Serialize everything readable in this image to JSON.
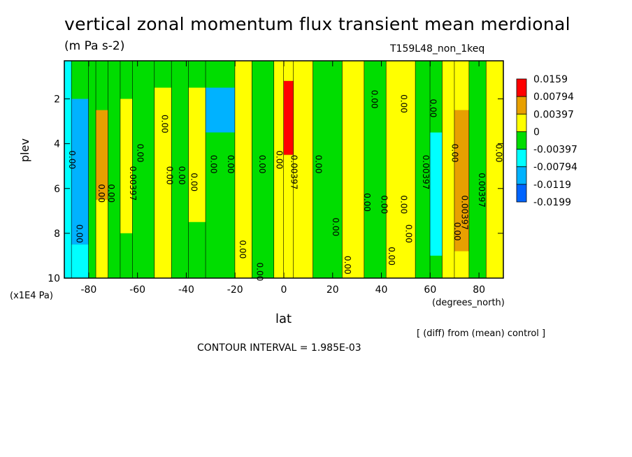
{
  "chart_data": {
    "type": "heatmap",
    "title": "vertical zonal momentum flux transient mean merdional",
    "units": "(m Pa s-2)",
    "run_id": "T159L48_non_1keq",
    "xlabel": "lat",
    "x_units": "(degrees_north)",
    "ylabel": "plev",
    "y_units": "(x1E4 Pa)",
    "note": "[ (diff) from (mean) control ]",
    "contour_interval": "CONTOUR INTERVAL = 1.985E-03",
    "xlim": [
      -90,
      90
    ],
    "ylim": [
      10,
      0.3
    ],
    "x_ticks": [
      "-80",
      "-60",
      "-40",
      "-20",
      "0",
      "20",
      "40",
      "60",
      "80"
    ],
    "y_ticks": [
      "2",
      "4",
      "6",
      "8",
      "10"
    ],
    "legend_levels": [
      "0.0159",
      "0.00794",
      "0.00397",
      "0",
      "-0.00397",
      "-0.00794",
      "-0.0119",
      "-0.0199"
    ],
    "legend_colors": [
      "#ff0000",
      "#e8a000",
      "#ffff00",
      "#00dd00",
      "#00ffff",
      "#00b2ff",
      "#0064ff"
    ],
    "contour_labels": [
      {
        "text": "0.00",
        "lat": -50,
        "plev": 2.7
      },
      {
        "text": "0.00",
        "lat": -88,
        "plev": 4.3
      },
      {
        "text": "0.00",
        "lat": -60,
        "plev": 4.0
      },
      {
        "text": "0.00397",
        "lat": -63,
        "plev": 5.0
      },
      {
        "text": "0.00",
        "lat": -48,
        "plev": 5.0
      },
      {
        "text": "0.00",
        "lat": -43,
        "plev": 5.0
      },
      {
        "text": "0.00",
        "lat": -38,
        "plev": 5.3
      },
      {
        "text": "0.00",
        "lat": -30,
        "plev": 4.5
      },
      {
        "text": "0.00",
        "lat": -23,
        "plev": 4.5
      },
      {
        "text": "0.00",
        "lat": -10,
        "plev": 4.5
      },
      {
        "text": "0.00",
        "lat": -3,
        "plev": 4.3
      },
      {
        "text": "0.00397",
        "lat": 3,
        "plev": 4.5
      },
      {
        "text": "0.00",
        "lat": 13,
        "plev": 4.5
      },
      {
        "text": "0.00",
        "lat": 36,
        "plev": 1.6
      },
      {
        "text": "0.00",
        "lat": 48,
        "plev": 1.8
      },
      {
        "text": "0.00",
        "lat": 60,
        "plev": 2.0
      },
      {
        "text": "0.00397",
        "lat": 57,
        "plev": 4.5
      },
      {
        "text": "0.00",
        "lat": 69,
        "plev": 4.0
      },
      {
        "text": "0.00",
        "lat": 87,
        "plev": 4.0
      },
      {
        "text": "0.00397",
        "lat": 80,
        "plev": 5.3
      },
      {
        "text": "0.00397",
        "lat": 73,
        "plev": 6.3
      },
      {
        "text": "0.00",
        "lat": -76,
        "plev": 5.8
      },
      {
        "text": "0.00",
        "lat": -72,
        "plev": 5.8
      },
      {
        "text": "0.00",
        "lat": -85,
        "plev": 7.6
      },
      {
        "text": "0.00",
        "lat": -18,
        "plev": 8.3
      },
      {
        "text": "0.00",
        "lat": -11,
        "plev": 9.3
      },
      {
        "text": "0.00",
        "lat": 20,
        "plev": 7.3
      },
      {
        "text": "0.00",
        "lat": 33,
        "plev": 6.2
      },
      {
        "text": "0.00",
        "lat": 40,
        "plev": 6.3
      },
      {
        "text": "0.00",
        "lat": 48,
        "plev": 6.3
      },
      {
        "text": "0.00",
        "lat": 50,
        "plev": 7.6
      },
      {
        "text": "0.00",
        "lat": 43,
        "plev": 8.6
      },
      {
        "text": "0.00",
        "lat": 70,
        "plev": 7.5
      },
      {
        "text": "0.00",
        "lat": 25,
        "plev": 9.0
      }
    ],
    "bands": [
      {
        "lat": [
          -90,
          -87
        ],
        "dominant": "0",
        "cells": [
          {
            "plev": [
              0.3,
              4.0
            ],
            "color_index": 4
          },
          {
            "plev": [
              4.0,
              10
            ],
            "color_index": 4
          }
        ]
      },
      {
        "lat": [
          -87,
          -80
        ],
        "dominant": "-0.00794",
        "cells": [
          {
            "plev": [
              0.3,
              2.0
            ],
            "color_index": 3
          },
          {
            "plev": [
              2.0,
              8.5
            ],
            "color_index": 5
          },
          {
            "plev": [
              8.5,
              10
            ],
            "color_index": 4
          }
        ]
      },
      {
        "lat": [
          -80,
          -77
        ],
        "dominant": "0",
        "cells": [
          {
            "plev": [
              0.3,
              10
            ],
            "color_index": 3
          }
        ]
      },
      {
        "lat": [
          -77,
          -72
        ],
        "dominant": "0.00397",
        "cells": [
          {
            "plev": [
              0.3,
              2.5
            ],
            "color_index": 3
          },
          {
            "plev": [
              2.5,
              6.5
            ],
            "color_index": 1
          },
          {
            "plev": [
              6.5,
              10
            ],
            "color_index": 2
          }
        ]
      },
      {
        "lat": [
          -72,
          -67
        ],
        "dominant": "0",
        "cells": [
          {
            "plev": [
              0.3,
              10
            ],
            "color_index": 3
          }
        ]
      },
      {
        "lat": [
          -67,
          -62
        ],
        "dominant": "0.00397",
        "cells": [
          {
            "plev": [
              0.3,
              2.0
            ],
            "color_index": 3
          },
          {
            "plev": [
              2.0,
              8.0
            ],
            "color_index": 2
          },
          {
            "plev": [
              8.0,
              10
            ],
            "color_index": 3
          }
        ]
      },
      {
        "lat": [
          -62,
          -53
        ],
        "dominant": "0",
        "cells": [
          {
            "plev": [
              0.3,
              10
            ],
            "color_index": 3
          }
        ]
      },
      {
        "lat": [
          -53,
          -46
        ],
        "dominant": "0",
        "cells": [
          {
            "plev": [
              0.3,
              1.5
            ],
            "color_index": 3
          },
          {
            "plev": [
              1.5,
              10
            ],
            "color_index": 2
          }
        ]
      },
      {
        "lat": [
          -46,
          -39
        ],
        "dominant": "0",
        "cells": [
          {
            "plev": [
              0.3,
              10
            ],
            "color_index": 3
          }
        ]
      },
      {
        "lat": [
          -39,
          -32
        ],
        "dominant": "0",
        "cells": [
          {
            "plev": [
              0.3,
              1.5
            ],
            "color_index": 3
          },
          {
            "plev": [
              1.5,
              7.5
            ],
            "color_index": 2
          },
          {
            "plev": [
              7.5,
              10
            ],
            "color_index": 3
          }
        ]
      },
      {
        "lat": [
          -32,
          -20
        ],
        "dominant": "-0.00794",
        "cells": [
          {
            "plev": [
              0.3,
              1.5
            ],
            "color_index": 3
          },
          {
            "plev": [
              1.5,
              3.5
            ],
            "color_index": 5
          },
          {
            "plev": [
              3.5,
              10
            ],
            "color_index": 3
          }
        ]
      },
      {
        "lat": [
          -20,
          -13
        ],
        "dominant": "0",
        "cells": [
          {
            "plev": [
              0.3,
              10
            ],
            "color_index": 2
          }
        ]
      },
      {
        "lat": [
          -13,
          -4
        ],
        "dominant": "0",
        "cells": [
          {
            "plev": [
              0.3,
              2.0
            ],
            "color_index": 3
          },
          {
            "plev": [
              2.0,
              10
            ],
            "color_index": 3
          }
        ]
      },
      {
        "lat": [
          -4,
          0
        ],
        "dominant": "0",
        "cells": [
          {
            "plev": [
              0.3,
              10
            ],
            "color_index": 2
          }
        ]
      },
      {
        "lat": [
          0,
          4
        ],
        "dominant": "0.0159",
        "cells": [
          {
            "plev": [
              0.3,
              1.2
            ],
            "color_index": 2
          },
          {
            "plev": [
              1.2,
              4.5
            ],
            "color_index": 0
          },
          {
            "plev": [
              4.5,
              10
            ],
            "color_index": 2
          }
        ]
      },
      {
        "lat": [
          4,
          12
        ],
        "dominant": "0",
        "cells": [
          {
            "plev": [
              0.3,
              10
            ],
            "color_index": 2
          }
        ]
      },
      {
        "lat": [
          12,
          24
        ],
        "dominant": "0",
        "cells": [
          {
            "plev": [
              0.3,
              10
            ],
            "color_index": 3
          }
        ]
      },
      {
        "lat": [
          24,
          33
        ],
        "dominant": "0",
        "cells": [
          {
            "plev": [
              0.3,
              10
            ],
            "color_index": 2
          }
        ]
      },
      {
        "lat": [
          33,
          42
        ],
        "dominant": "0",
        "cells": [
          {
            "plev": [
              0.3,
              10
            ],
            "color_index": 3
          }
        ]
      },
      {
        "lat": [
          42,
          54
        ],
        "dominant": "0",
        "cells": [
          {
            "plev": [
              0.3,
              10
            ],
            "color_index": 2
          }
        ]
      },
      {
        "lat": [
          54,
          60
        ],
        "dominant": "0",
        "cells": [
          {
            "plev": [
              0.3,
              10
            ],
            "color_index": 3
          }
        ]
      },
      {
        "lat": [
          60,
          65
        ],
        "dominant": "-0.00794",
        "cells": [
          {
            "plev": [
              0.3,
              3.5
            ],
            "color_index": 3
          },
          {
            "plev": [
              3.5,
              9.0
            ],
            "color_index": 4
          },
          {
            "plev": [
              9.0,
              10
            ],
            "color_index": 3
          }
        ]
      },
      {
        "lat": [
          65,
          70
        ],
        "dominant": "0",
        "cells": [
          {
            "plev": [
              0.3,
              10
            ],
            "color_index": 2
          }
        ]
      },
      {
        "lat": [
          70,
          76
        ],
        "dominant": "0.00397",
        "cells": [
          {
            "plev": [
              0.3,
              2.5
            ],
            "color_index": 2
          },
          {
            "plev": [
              2.5,
              8.8
            ],
            "color_index": 1
          },
          {
            "plev": [
              8.8,
              10
            ],
            "color_index": 2
          }
        ]
      },
      {
        "lat": [
          76,
          83
        ],
        "dominant": "0",
        "cells": [
          {
            "plev": [
              0.3,
              10
            ],
            "color_index": 3
          }
        ]
      },
      {
        "lat": [
          83,
          90
        ],
        "dominant": "0",
        "cells": [
          {
            "plev": [
              0.3,
              10
            ],
            "color_index": 2
          }
        ]
      }
    ]
  }
}
